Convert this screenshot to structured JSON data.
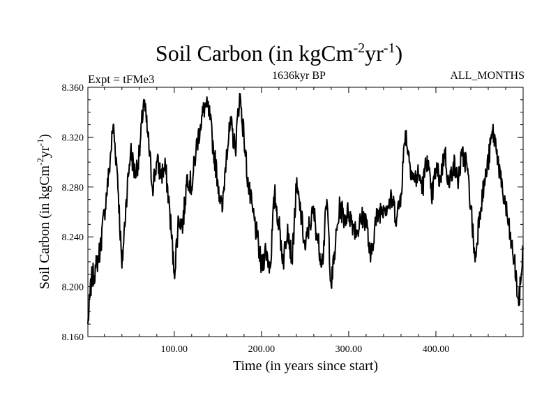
{
  "chart_data": {
    "type": "line",
    "title": "Soil Carbon (in kgCm",
    "title_units": {
      "exp1": "-2",
      "mid": "yr",
      "exp2": "-1",
      "close": ")"
    },
    "subtitle_left": "Expt = tFMe3",
    "subtitle_center": "1636kyr BP",
    "subtitle_right": "ALL_MONTHS",
    "xlabel": "Time (in years since start)",
    "ylabel": "Soil Carbon (in kgCm",
    "ylabel_units": {
      "exp1": "-2",
      "mid": "yr",
      "exp2": "-1",
      "close": ")"
    },
    "xlim": [
      1,
      500
    ],
    "ylim": [
      8.16,
      8.36
    ],
    "xticks": [
      100,
      200,
      300,
      400
    ],
    "xtick_labels": [
      "100.00",
      "200.00",
      "300.00",
      "400.00"
    ],
    "yticks": [
      8.16,
      8.2,
      8.24,
      8.28,
      8.32,
      8.36
    ],
    "ytick_labels": [
      "8.160",
      "8.200",
      "8.240",
      "8.280",
      "8.320",
      "8.360"
    ],
    "series": [
      {
        "name": "Soil Carbon",
        "color": "#000000",
        "x": [
          1,
          5,
          10,
          15,
          20,
          25,
          30,
          35,
          40,
          45,
          50,
          55,
          60,
          65,
          70,
          75,
          80,
          85,
          90,
          95,
          100,
          105,
          110,
          115,
          120,
          125,
          130,
          135,
          140,
          145,
          150,
          155,
          160,
          165,
          170,
          175,
          180,
          185,
          190,
          195,
          200,
          205,
          210,
          215,
          220,
          225,
          230,
          235,
          240,
          245,
          250,
          255,
          260,
          265,
          270,
          275,
          280,
          285,
          290,
          295,
          300,
          305,
          310,
          315,
          320,
          325,
          330,
          335,
          340,
          345,
          350,
          355,
          360,
          365,
          370,
          375,
          380,
          385,
          390,
          395,
          400,
          405,
          410,
          415,
          420,
          425,
          430,
          435,
          440,
          445,
          450,
          455,
          460,
          465,
          470,
          475,
          480,
          485,
          490,
          495,
          500
        ],
        "values": [
          8.17,
          8.205,
          8.215,
          8.23,
          8.26,
          8.29,
          8.33,
          8.29,
          8.215,
          8.27,
          8.31,
          8.29,
          8.305,
          8.35,
          8.32,
          8.28,
          8.3,
          8.29,
          8.295,
          8.26,
          8.21,
          8.255,
          8.25,
          8.29,
          8.28,
          8.31,
          8.33,
          8.345,
          8.34,
          8.31,
          8.285,
          8.26,
          8.31,
          8.33,
          8.31,
          8.355,
          8.32,
          8.28,
          8.26,
          8.24,
          8.215,
          8.23,
          8.215,
          8.275,
          8.25,
          8.22,
          8.25,
          8.22,
          8.28,
          8.26,
          8.23,
          8.25,
          8.26,
          8.235,
          8.22,
          8.27,
          8.2,
          8.235,
          8.265,
          8.255,
          8.26,
          8.25,
          8.245,
          8.255,
          8.255,
          8.22,
          8.25,
          8.26,
          8.265,
          8.265,
          8.27,
          8.255,
          8.275,
          8.325,
          8.3,
          8.285,
          8.29,
          8.28,
          8.305,
          8.27,
          8.295,
          8.285,
          8.31,
          8.28,
          8.3,
          8.285,
          8.305,
          8.3,
          8.265,
          8.22,
          8.26,
          8.28,
          8.3,
          8.325,
          8.31,
          8.28,
          8.265,
          8.24,
          8.22,
          8.185,
          8.23
        ]
      }
    ]
  }
}
